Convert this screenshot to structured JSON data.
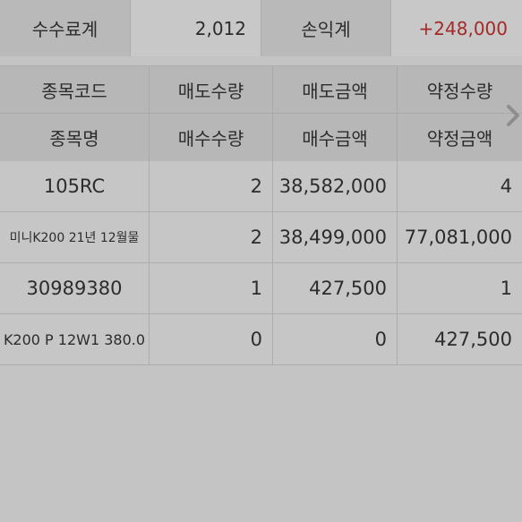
{
  "summary": {
    "fee_label": "수수료계",
    "fee_value": "2,012",
    "pnl_label": "손익계",
    "pnl_value": "+248,000"
  },
  "colors": {
    "profit": "#a42a28",
    "header_bg": "#b7b7b7",
    "row_bg": "#c6c6c6"
  },
  "table": {
    "header_row1": [
      "종목코드",
      "매도수량",
      "매도금액",
      "약정수량"
    ],
    "header_row2": [
      "종목명",
      "매수수량",
      "매수금액",
      "약정금액"
    ],
    "next_icon": "chevron-right-icon",
    "rows": [
      {
        "name": "105RC",
        "qty": "2",
        "amount": "38,582,000",
        "contract": "4"
      },
      {
        "name": "미니K200 21년 12월물",
        "qty": "2",
        "amount": "38,499,000",
        "contract": "77,081,000"
      },
      {
        "name": "30989380",
        "qty": "1",
        "amount": "427,500",
        "contract": "1"
      },
      {
        "name": "K200 P 12W1 380.0",
        "qty": "0",
        "amount": "0",
        "contract": "427,500"
      }
    ]
  }
}
